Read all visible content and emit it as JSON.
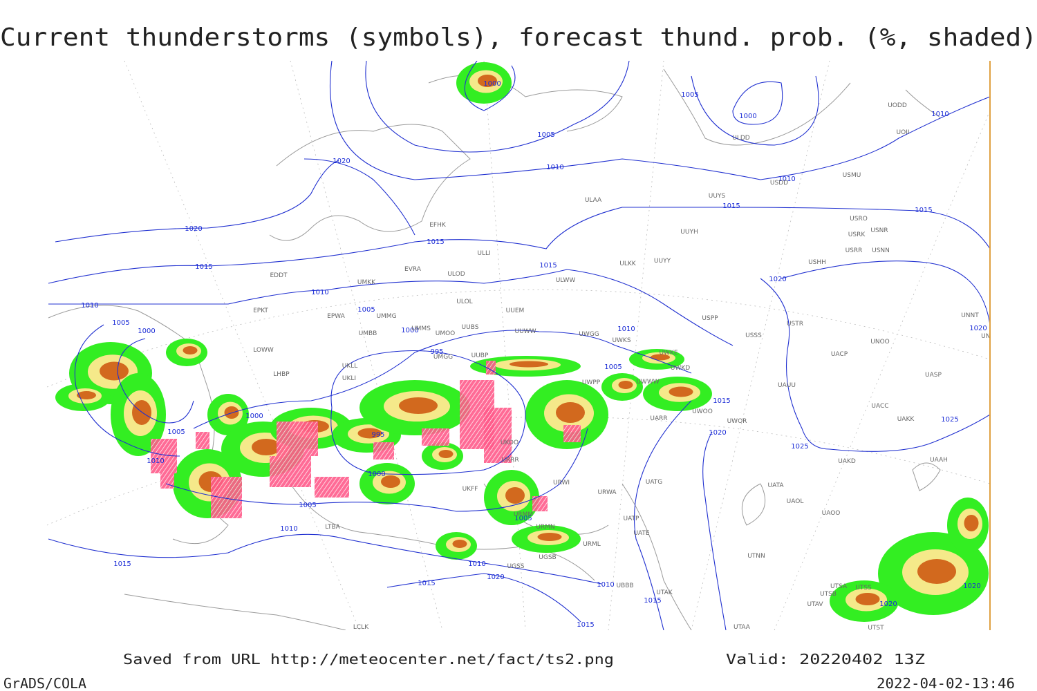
{
  "title": "Current thunderstorms (symbols), forecast thund. prob. (%, shaded)",
  "footer": {
    "saved": "Saved from URL http://meteocenter.net/fact/ts2.png",
    "valid": "Valid: 20220402 13Z",
    "credit": "GrADS/COLA",
    "timestamp": "2022-04-02-13:46"
  },
  "isobars": [
    1000,
    1005,
    1000,
    1010,
    1005,
    1020,
    1010,
    1010,
    1015,
    1015,
    1020,
    1015,
    1015,
    1015,
    1020,
    1010,
    1010,
    1005,
    1005,
    1000,
    1000,
    1010,
    1020,
    995,
    1005,
    1015,
    1000,
    1025,
    1005,
    1020,
    995,
    1010,
    1025,
    1000,
    1005,
    1005,
    1010,
    1015,
    1010,
    1020,
    1015,
    1010,
    1015,
    1020,
    1020,
    1015
  ],
  "stations": [
    "ULDD",
    "UOII",
    "UODD",
    "UUYS",
    "USDD",
    "USMU",
    "ULAA",
    "EFHK",
    "UUYH",
    "USRO",
    "USRK",
    "USNR",
    "USRR",
    "USNN",
    "ULLI",
    "UUYY",
    "ULKK",
    "USHH",
    "EVRA",
    "ULOD",
    "EDDT",
    "ULWW",
    "UMKK",
    "ULOL",
    "UUEM",
    "EPKT",
    "EPWA",
    "UMMG",
    "UMMS",
    "UMOO",
    "UUBS",
    "UUWW",
    "USPP",
    "USTR",
    "USSS",
    "UMBB",
    "UWGG",
    "UWKS",
    "UNOO",
    "UNBB",
    "UNNT",
    "LOWW",
    "UUBP",
    "UMGG",
    "UWKE",
    "UWKD",
    "UKLL",
    "UKLI",
    "LHBP",
    "UWPP",
    "UWWW",
    "UAUU",
    "UACP",
    "UASP",
    "UAKK",
    "UACC",
    "UARR",
    "UWOO",
    "UWOR",
    "UKOO",
    "URRR",
    "URWI",
    "URWA",
    "UATG",
    "UATA",
    "UAOL",
    "UAOO",
    "UATP",
    "UATE",
    "URMM",
    "URMN",
    "URML",
    "UTNN",
    "UGSB",
    "UBBB",
    "UTAK",
    "UTSA",
    "UTSB",
    "UTAV",
    "UTAA",
    "LTBA",
    "UKFF",
    "UAAH",
    "UAKD",
    "UTSS",
    "UTST",
    "LCLK",
    "UGSS"
  ]
}
